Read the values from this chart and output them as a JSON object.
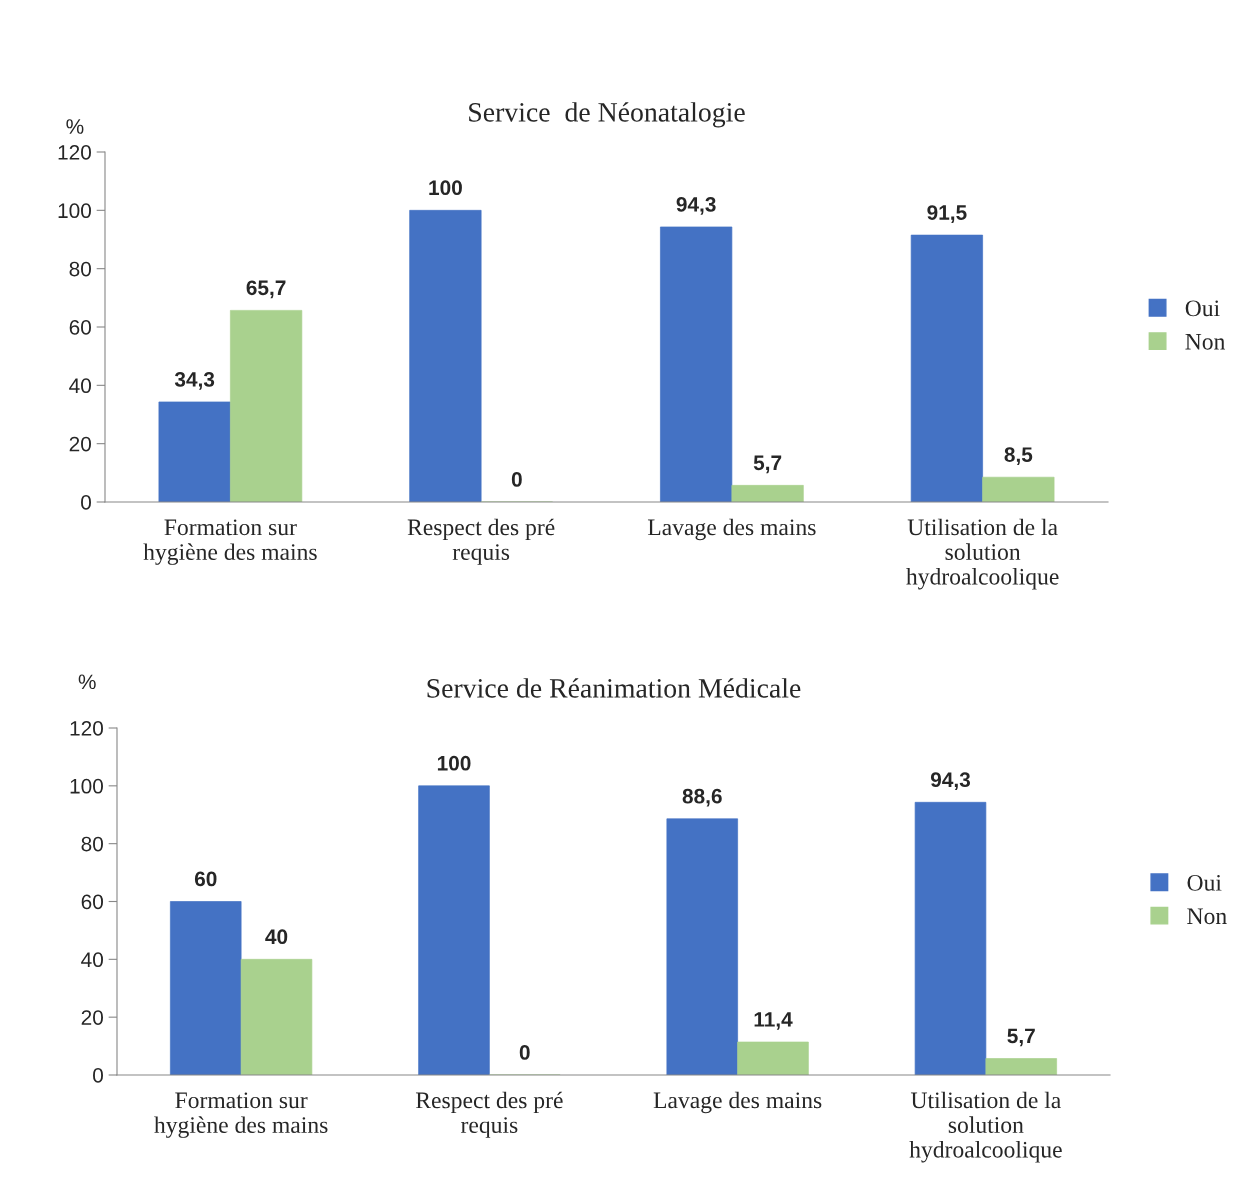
{
  "chart_data": [
    {
      "type": "bar",
      "title": "Service  de Néonatalogie",
      "ylabel": "%",
      "categories": [
        "Formation sur\nhygiène des mains",
        "Respect des pré\nrequis",
        "Lavage des mains",
        "Utilisation de la\nsolution\nhydroalcoolique"
      ],
      "series": [
        {
          "name": "Oui",
          "color": "#4472c4",
          "values": [
            34.3,
            100,
            94.3,
            91.5
          ],
          "value_labels": [
            "34,3",
            "100",
            "94,3",
            "91,5"
          ]
        },
        {
          "name": "Non",
          "color": "#a9d18e",
          "values": [
            65.7,
            0,
            5.7,
            8.5
          ],
          "value_labels": [
            "65,7",
            "0",
            "5,7",
            "8,5"
          ]
        }
      ],
      "ylim": [
        0,
        120
      ],
      "yticks": [
        0,
        20,
        40,
        60,
        80,
        100,
        120
      ],
      "grid": false,
      "legend": "right"
    },
    {
      "type": "bar",
      "title": "Service de Réanimation Médicale",
      "ylabel": "%",
      "categories": [
        "Formation sur\nhygiène des mains",
        "Respect des pré\nrequis",
        "Lavage des mains",
        "Utilisation de la\nsolution\nhydroalcoolique"
      ],
      "series": [
        {
          "name": "Oui",
          "color": "#4472c4",
          "values": [
            60,
            100,
            88.6,
            94.3
          ],
          "value_labels": [
            "60",
            "100",
            "88,6",
            "94,3"
          ]
        },
        {
          "name": "Non",
          "color": "#a9d18e",
          "values": [
            40,
            0,
            11.4,
            5.7
          ],
          "value_labels": [
            "40",
            "0",
            "11,4",
            "5,7"
          ]
        }
      ],
      "ylim": [
        0,
        120
      ],
      "yticks": [
        0,
        20,
        40,
        60,
        80,
        100,
        120
      ],
      "grid": false,
      "legend": "right"
    }
  ]
}
